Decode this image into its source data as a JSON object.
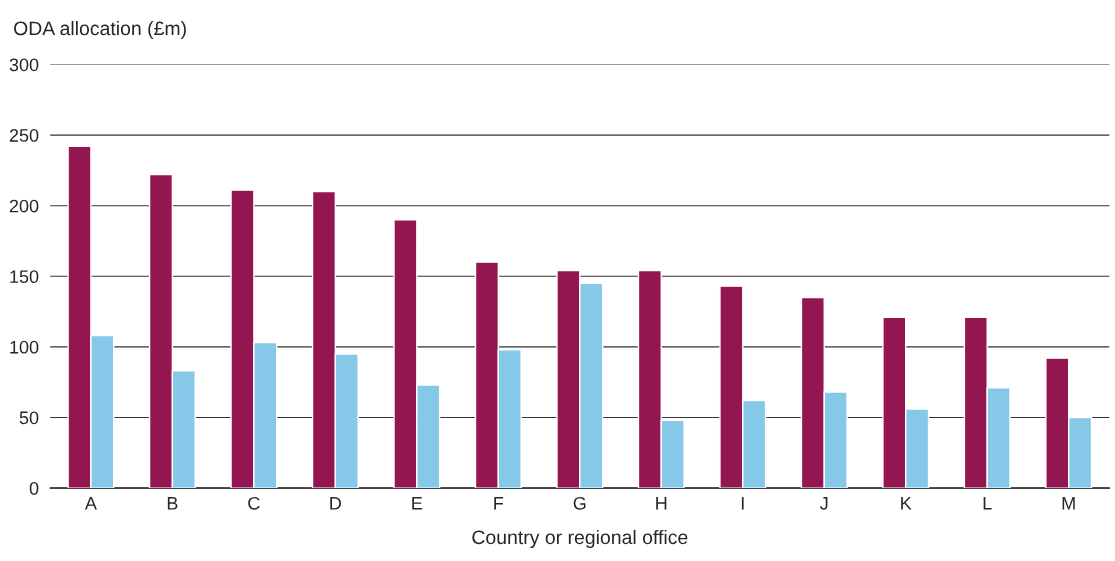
{
  "chart_data": {
    "type": "bar",
    "ylabel": "ODA allocation (£m)",
    "xlabel": "Country or regional office",
    "categories": [
      "A",
      "B",
      "C",
      "D",
      "E",
      "F",
      "G",
      "H",
      "I",
      "J",
      "K",
      "L",
      "M"
    ],
    "series": [
      {
        "color": "#941651",
        "values": [
          242,
          222,
          211,
          210,
          190,
          160,
          154,
          154,
          143,
          135,
          121,
          121,
          92
        ]
      },
      {
        "color": "#85c8e8",
        "values": [
          108,
          83,
          103,
          95,
          73,
          98,
          145,
          48,
          62,
          68,
          56,
          71,
          50
        ]
      }
    ],
    "ylim": [
      0,
      300
    ],
    "yticks": [
      0,
      50,
      100,
      150,
      200,
      250,
      300
    ],
    "grid": "y"
  }
}
